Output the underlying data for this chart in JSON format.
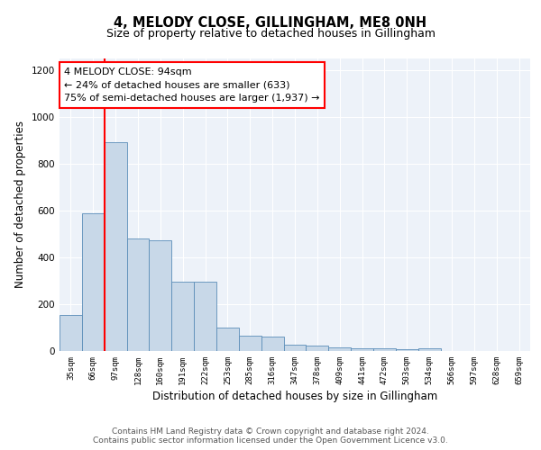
{
  "title": "4, MELODY CLOSE, GILLINGHAM, ME8 0NH",
  "subtitle": "Size of property relative to detached houses in Gillingham",
  "xlabel": "Distribution of detached houses by size in Gillingham",
  "ylabel": "Number of detached properties",
  "bar_labels": [
    "35sqm",
    "66sqm",
    "97sqm",
    "128sqm",
    "160sqm",
    "191sqm",
    "222sqm",
    "253sqm",
    "285sqm",
    "316sqm",
    "347sqm",
    "378sqm",
    "409sqm",
    "441sqm",
    "472sqm",
    "503sqm",
    "534sqm",
    "566sqm",
    "597sqm",
    "628sqm",
    "659sqm"
  ],
  "bar_values": [
    152,
    587,
    893,
    479,
    473,
    295,
    297,
    101,
    64,
    62,
    27,
    25,
    17,
    13,
    10,
    8,
    10,
    0,
    0,
    0,
    0
  ],
  "bar_color": "#c8d8e8",
  "bar_edge_color": "#5b8db8",
  "vline_x": 1.5,
  "vline_color": "red",
  "annotation_text": "4 MELODY CLOSE: 94sqm\n← 24% of detached houses are smaller (633)\n75% of semi-detached houses are larger (1,937) →",
  "annotation_box_color": "white",
  "annotation_box_edge_color": "red",
  "ylim": [
    0,
    1250
  ],
  "yticks": [
    0,
    200,
    400,
    600,
    800,
    1000,
    1200
  ],
  "bg_color": "#edf2f9",
  "footer_text": "Contains HM Land Registry data © Crown copyright and database right 2024.\nContains public sector information licensed under the Open Government Licence v3.0.",
  "title_fontsize": 10.5,
  "subtitle_fontsize": 9,
  "xlabel_fontsize": 8.5,
  "ylabel_fontsize": 8.5,
  "annotation_fontsize": 8,
  "footer_fontsize": 6.5,
  "tick_fontsize": 7.5,
  "xtick_fontsize": 6.5
}
